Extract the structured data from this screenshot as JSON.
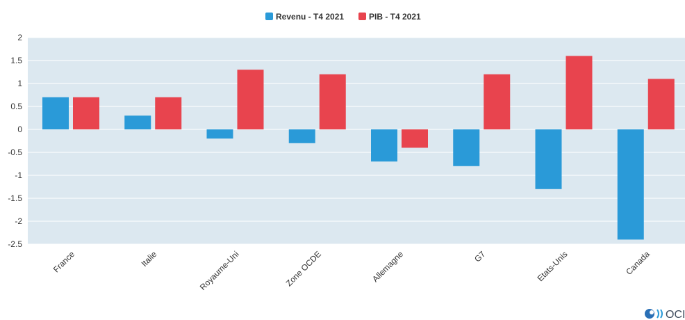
{
  "chart_data": {
    "type": "bar",
    "title": "",
    "xlabel": "",
    "ylabel": "",
    "ylim": [
      -2.5,
      2
    ],
    "yticks": [
      2,
      1.5,
      1,
      0.5,
      0,
      -0.5,
      -1,
      -1.5,
      -2,
      -2.5
    ],
    "ytick_labels": [
      "2",
      "1.5",
      "1",
      "0.5",
      "0",
      "-0.5",
      "-1",
      "-1.5",
      "-2",
      "-2.5"
    ],
    "categories": [
      "France",
      "Italie",
      "Royaume-Uni",
      "Zone OCDE",
      "Allemagne",
      "G7",
      "Etats-Unis",
      "Canada"
    ],
    "series": [
      {
        "name": "Revenu - T4 2021",
        "color": "#2a9ad8",
        "values": [
          0.7,
          0.3,
          -0.2,
          -0.3,
          -0.7,
          -0.8,
          -1.3,
          -2.4
        ]
      },
      {
        "name": "PIB - T4 2021",
        "color": "#e8444e",
        "values": [
          0.7,
          0.7,
          1.3,
          1.2,
          -0.4,
          1.2,
          1.6,
          1.1
        ]
      }
    ],
    "grid": true,
    "legend_position": "top-center",
    "plot_background": "#dce8f0"
  },
  "logo": {
    "text": "OCI",
    "icon": "oecd-logo-icon"
  }
}
